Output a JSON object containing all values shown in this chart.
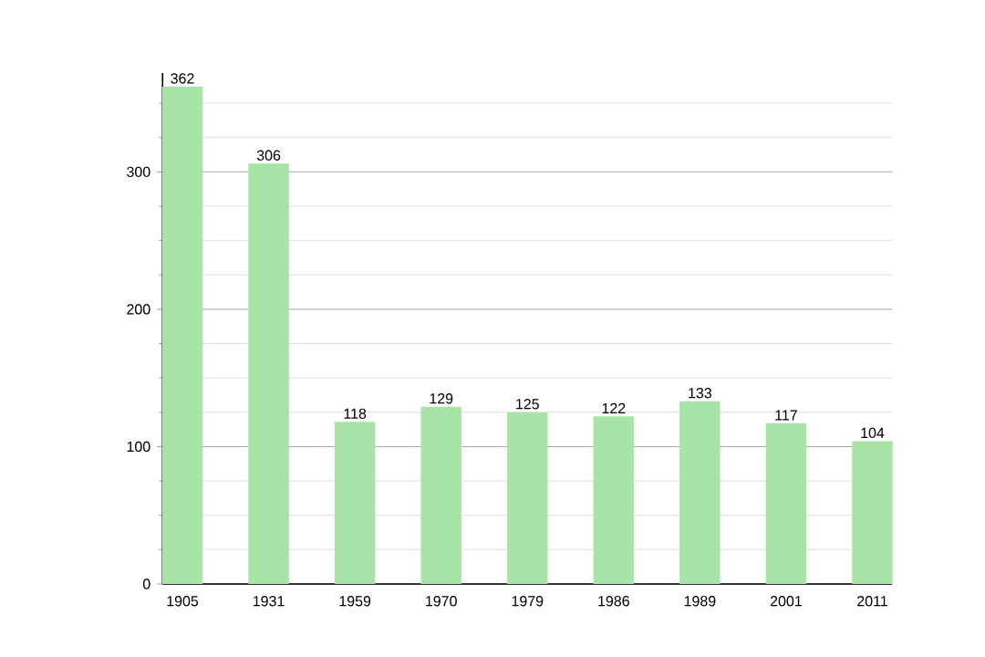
{
  "chart_data": {
    "type": "bar",
    "categories": [
      "1905",
      "1931",
      "1959",
      "1970",
      "1979",
      "1986",
      "1989",
      "2001",
      "2011"
    ],
    "values": [
      362,
      306,
      118,
      129,
      125,
      122,
      133,
      117,
      104
    ],
    "color": "#a8e4a8",
    "ylim": [
      0,
      372
    ],
    "yticks": [
      0,
      {
        "value": 25,
        "label": null
      },
      {
        "value": 50,
        "label": null
      },
      {
        "value": 75,
        "label": null
      },
      100,
      {
        "value": 125,
        "label": null
      },
      {
        "value": 150,
        "label": null
      },
      {
        "value": 175,
        "label": null
      },
      200,
      {
        "value": 225,
        "label": null
      },
      {
        "value": 250,
        "label": null
      },
      {
        "value": 275,
        "label": null
      },
      300,
      {
        "value": 325,
        "label": null
      },
      {
        "value": 350,
        "label": null
      }
    ],
    "grid": true,
    "data_labels": true
  }
}
